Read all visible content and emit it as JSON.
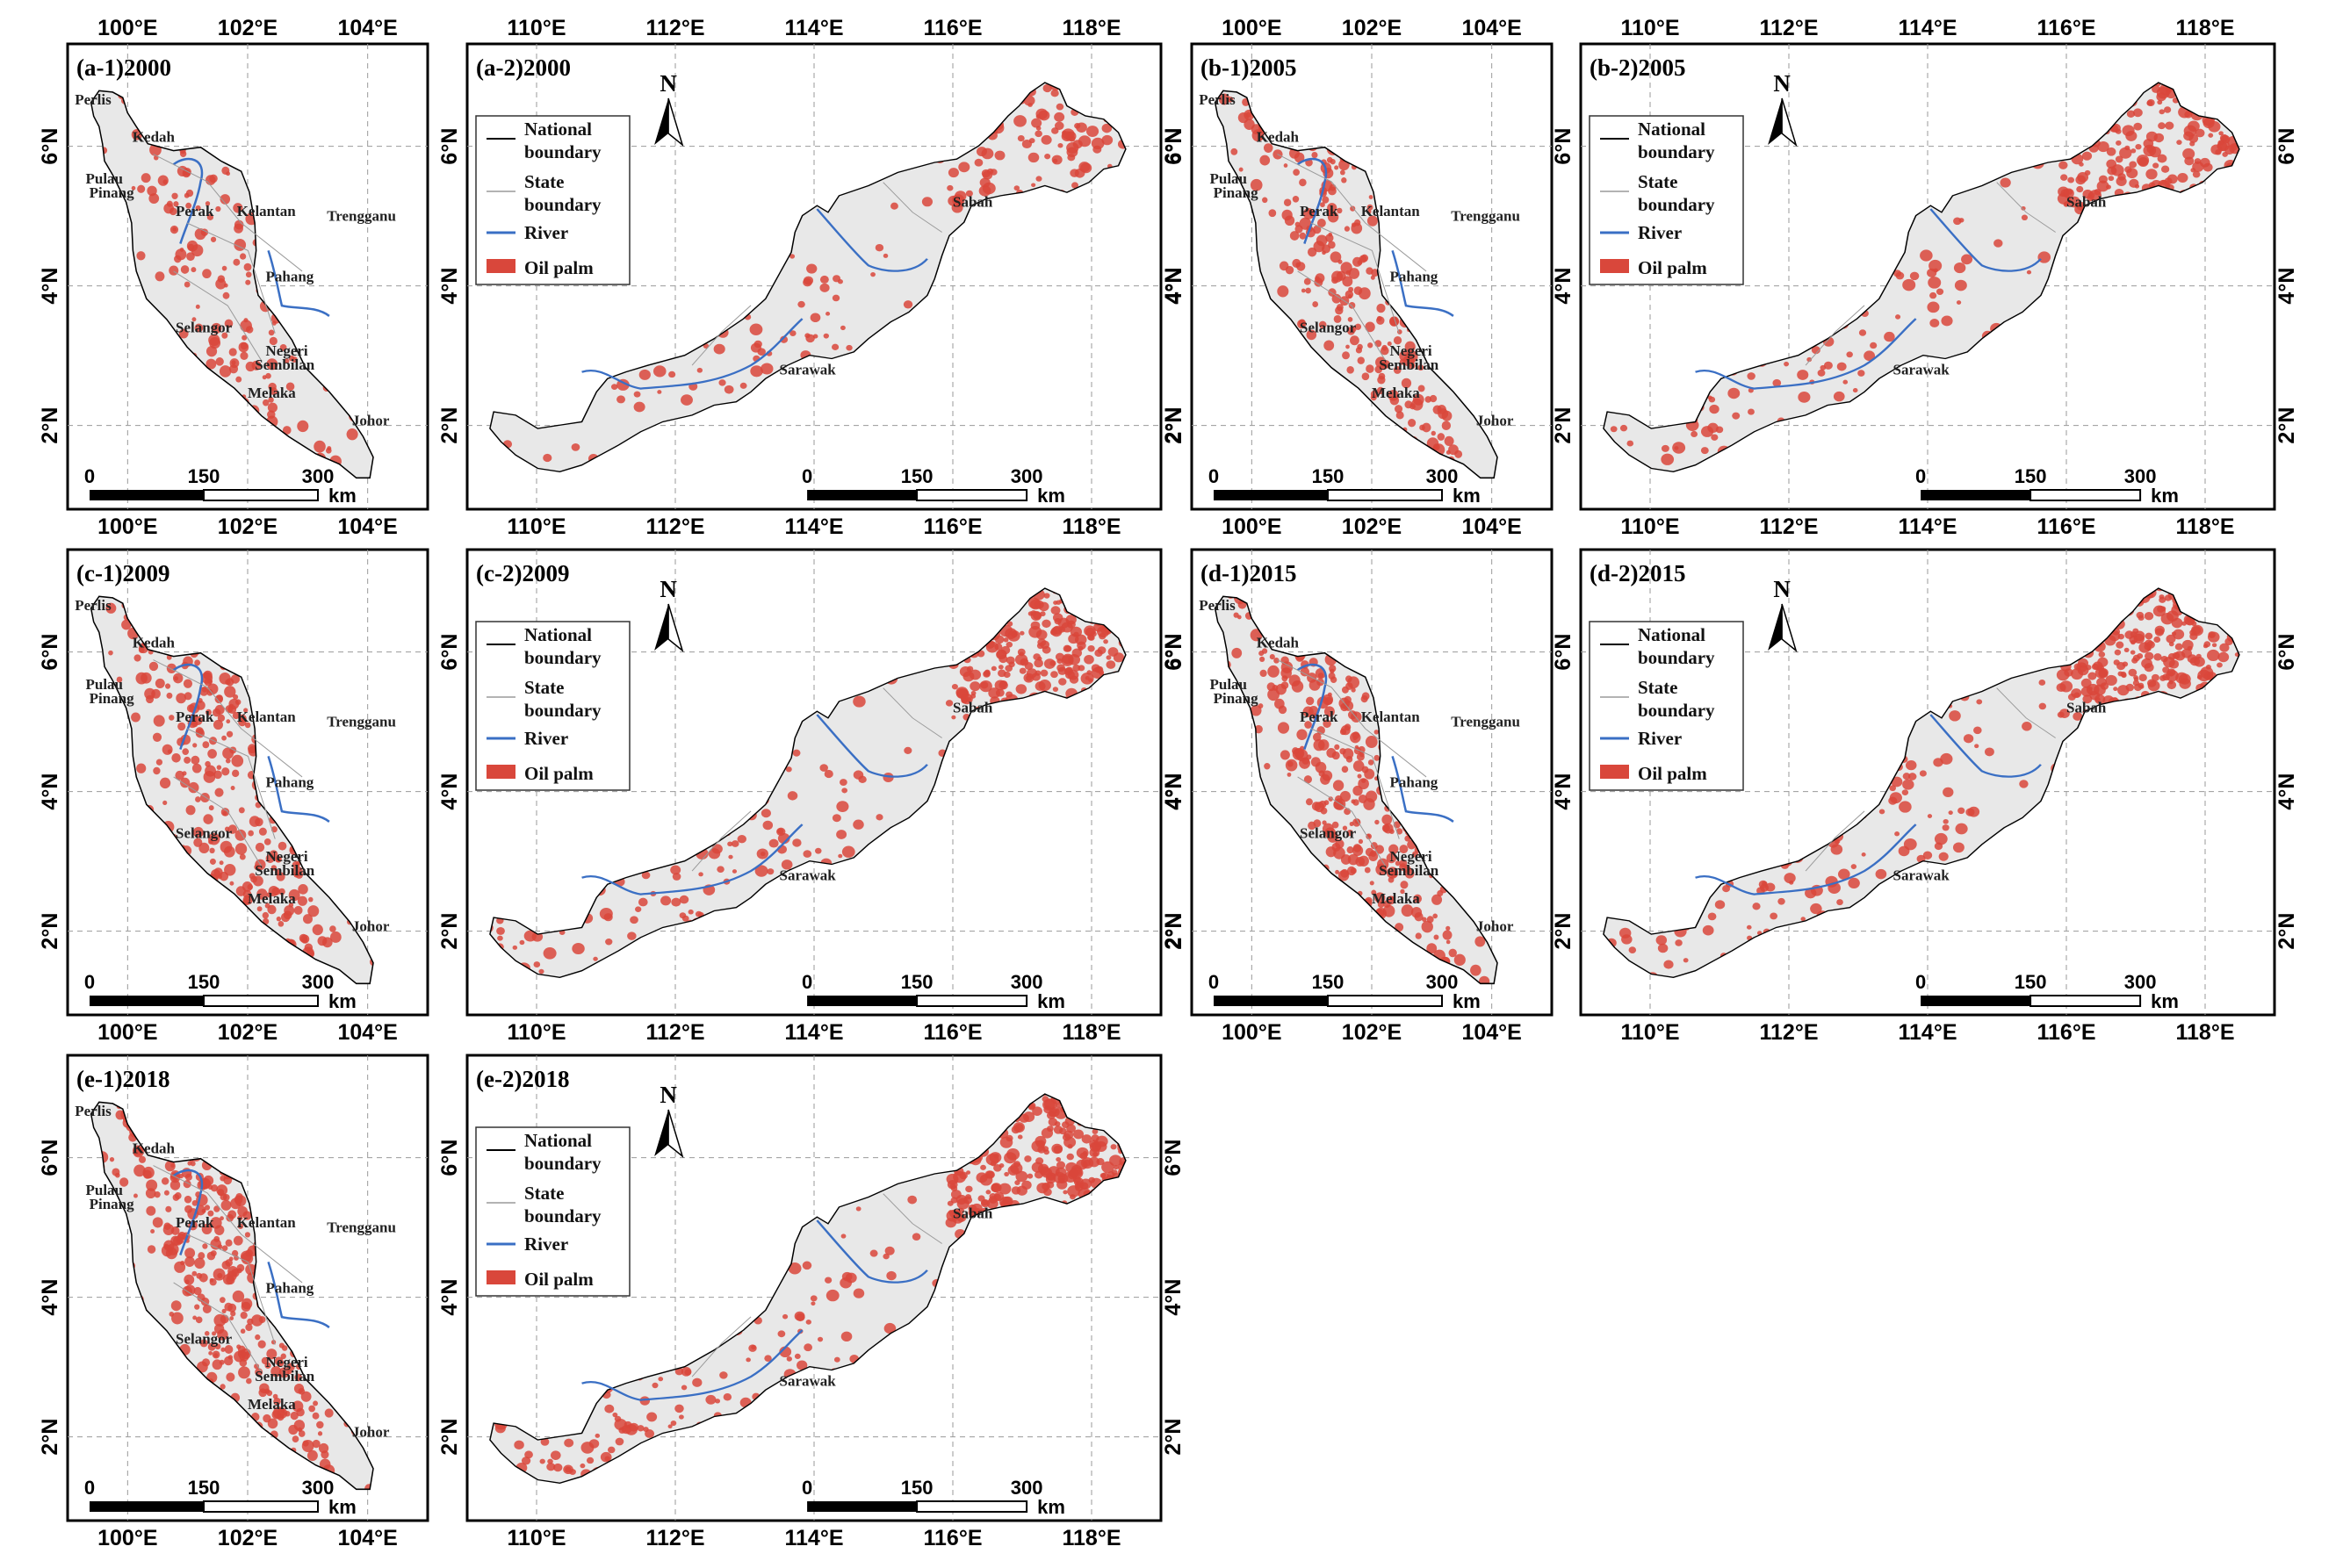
{
  "figure": {
    "panels": [
      {
        "id": "a-1",
        "title": "(a-1)2000",
        "region": "peninsular",
        "coverage": 0.3
      },
      {
        "id": "a-2",
        "title": "(a-2)2000",
        "region": "borneo",
        "coverage": 0.25
      },
      {
        "id": "b-1",
        "title": "(b-1)2005",
        "region": "peninsular",
        "coverage": 0.42
      },
      {
        "id": "b-2",
        "title": "(b-2)2005",
        "region": "borneo",
        "coverage": 0.36
      },
      {
        "id": "c-1",
        "title": "(c-1)2009",
        "region": "peninsular",
        "coverage": 0.55
      },
      {
        "id": "c-2",
        "title": "(c-2)2009",
        "region": "borneo",
        "coverage": 0.48
      },
      {
        "id": "d-1",
        "title": "(d-1)2015",
        "region": "peninsular",
        "coverage": 0.58
      },
      {
        "id": "d-2",
        "title": "(d-2)2015",
        "region": "borneo",
        "coverage": 0.5
      },
      {
        "id": "e-1",
        "title": "(e-1)2018",
        "region": "peninsular",
        "coverage": 0.62
      },
      {
        "id": "e-2",
        "title": "(e-2)2018",
        "region": "borneo",
        "coverage": 0.56
      }
    ],
    "peninsular": {
      "x_ticks": [
        "100°E",
        "102°E",
        "104°E"
      ],
      "y_ticks": [
        "6°N",
        "4°N",
        "2°N"
      ],
      "states": [
        "Perlis",
        "Kedah",
        "Pulau",
        "Pinang",
        "Perak",
        "Kelantan",
        "Trengganu",
        "Pahang",
        "Selangor",
        "Negeri",
        "Sembilan",
        "Melaka",
        "Johor"
      ]
    },
    "borneo": {
      "x_ticks": [
        "110°E",
        "112°E",
        "114°E",
        "116°E",
        "118°E"
      ],
      "y_ticks": [
        "6°N",
        "4°N",
        "2°N"
      ],
      "states": [
        "Sabah",
        "Sarawak"
      ],
      "north_arrow": "N"
    },
    "legend": {
      "national_line1": "National",
      "national_line2": "boundary",
      "state_line1": "State",
      "state_line2": "boundary",
      "river": "River",
      "oil_palm": "Oil palm"
    },
    "scale_bar": {
      "labels": [
        "0",
        "150",
        "300"
      ],
      "unit": "km"
    },
    "colors": {
      "land": "#e8e8e8",
      "oil_palm": "#d9473b",
      "river": "#3a6fc4",
      "national_boundary": "#000000",
      "state_boundary": "#9a9a9a",
      "frame": "#000000",
      "grid": "#9a9a9a"
    }
  }
}
